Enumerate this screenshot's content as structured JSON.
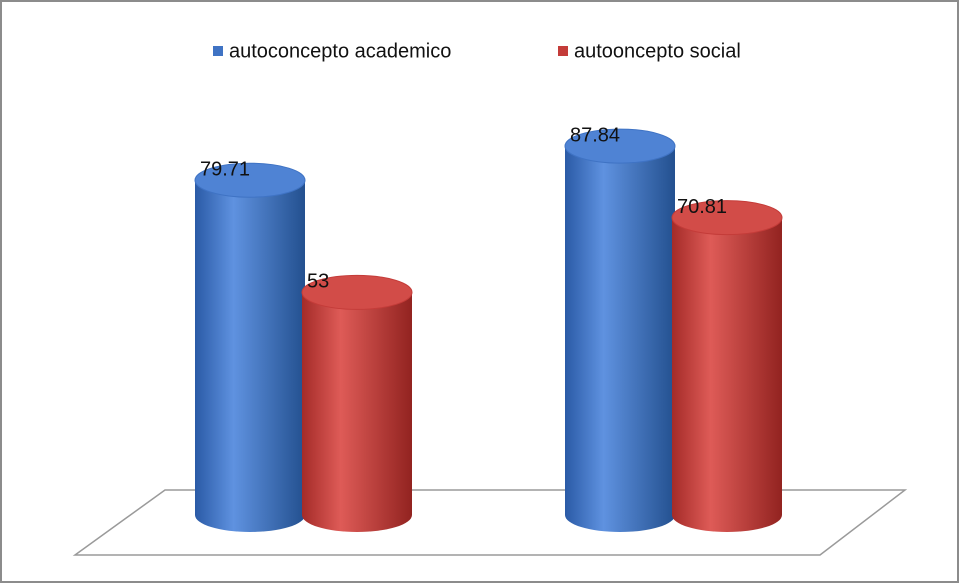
{
  "chart_data": {
    "type": "bar3d-cylinder",
    "categories": [
      null,
      null
    ],
    "series": [
      {
        "name": "autoconcepto academico",
        "color": "#3f73c4",
        "values": [
          79.71,
          87.84
        ]
      },
      {
        "name": "autooncepto social",
        "color": "#c43c39",
        "values": [
          53,
          70.81
        ]
      }
    ],
    "ylim": [
      0,
      100
    ],
    "legend": "top"
  }
}
